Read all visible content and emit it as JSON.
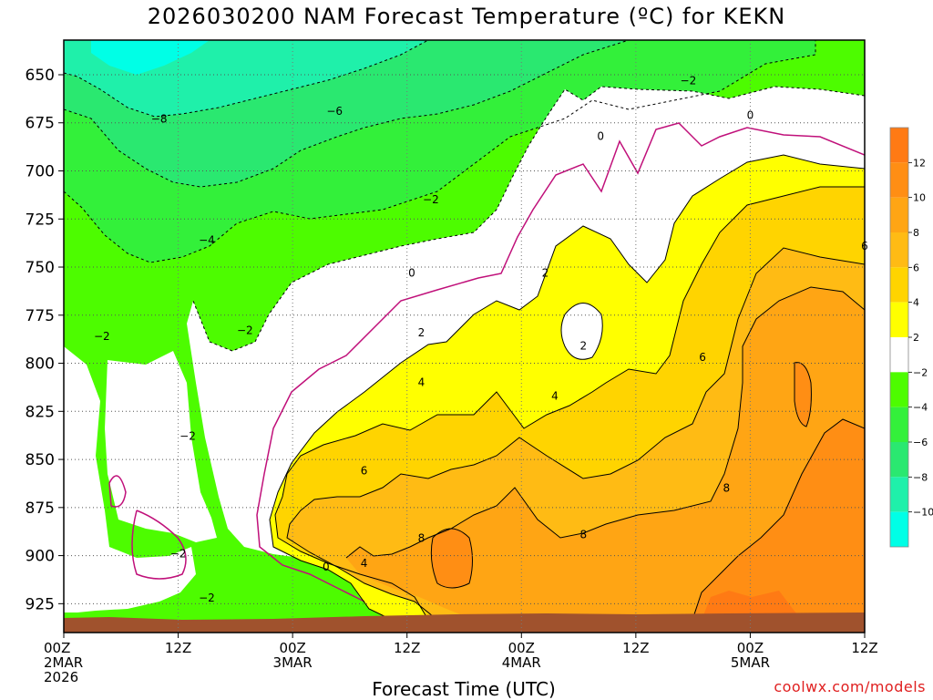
{
  "chart_data": {
    "type": "contour",
    "title": "2026030200 NAM Forecast Temperature (ºC) for KEKN",
    "xlabel": "Forecast Time (UTC)",
    "credit": "coolwx.com/models",
    "y_axis": {
      "ticks": [
        650,
        675,
        700,
        725,
        750,
        775,
        800,
        825,
        850,
        875,
        900,
        925
      ],
      "range": [
        632,
        940
      ],
      "inverted": true,
      "grid": true
    },
    "x_axis": {
      "ticks": [
        {
          "hour": 0,
          "lines": [
            "00Z",
            "2MAR",
            "2026"
          ]
        },
        {
          "hour": 12,
          "lines": [
            "12Z"
          ]
        },
        {
          "hour": 24,
          "lines": [
            "00Z",
            "3MAR"
          ]
        },
        {
          "hour": 36,
          "lines": [
            "12Z"
          ]
        },
        {
          "hour": 48,
          "lines": [
            "00Z",
            "4MAR"
          ]
        },
        {
          "hour": 60,
          "lines": [
            "12Z"
          ]
        },
        {
          "hour": 72,
          "lines": [
            "00Z",
            "5MAR"
          ]
        },
        {
          "hour": 84,
          "lines": [
            "12Z"
          ]
        }
      ],
      "range": [
        0,
        84
      ],
      "grid": true
    },
    "colorbar": {
      "labels": [
        12,
        10,
        8,
        6,
        4,
        2,
        -2,
        -4,
        -6,
        -8,
        -10
      ],
      "bins": [
        {
          "color": "#ff7a14"
        },
        {
          "color": "#ff8e14"
        },
        {
          "color": "#ffa514"
        },
        {
          "color": "#ffbb14"
        },
        {
          "color": "#ffd400"
        },
        {
          "color": "#ffff00"
        },
        {
          "color": "#ffffff"
        },
        {
          "color": "#4dfc00"
        },
        {
          "color": "#33f03a"
        },
        {
          "color": "#2ae870"
        },
        {
          "color": "#1ff0aa"
        },
        {
          "color": "#00ffe6"
        }
      ]
    },
    "contour_labels": [
      {
        "hour": 10.0,
        "p": 673,
        "text": "-8"
      },
      {
        "hour": 28.4,
        "p": 669,
        "text": "-6"
      },
      {
        "hour": 65.5,
        "p": 653,
        "text": "-2"
      },
      {
        "hour": 72.0,
        "p": 671,
        "text": "0"
      },
      {
        "hour": 56.3,
        "p": 682,
        "text": "0"
      },
      {
        "hour": 38.5,
        "p": 715,
        "text": "-2"
      },
      {
        "hour": 15.0,
        "p": 736,
        "text": "-4"
      },
      {
        "hour": 84.0,
        "p": 739,
        "text": "6"
      },
      {
        "hour": 36.5,
        "p": 753,
        "text": "0"
      },
      {
        "hour": 50.5,
        "p": 753,
        "text": "2"
      },
      {
        "hour": 4.0,
        "p": 786,
        "text": "-2"
      },
      {
        "hour": 19.0,
        "p": 783,
        "text": "-2"
      },
      {
        "hour": 37.5,
        "p": 784,
        "text": "2"
      },
      {
        "hour": 54.5,
        "p": 791,
        "text": "2"
      },
      {
        "hour": 67.0,
        "p": 797,
        "text": "6"
      },
      {
        "hour": 37.5,
        "p": 810,
        "text": "4"
      },
      {
        "hour": 51.5,
        "p": 817,
        "text": "4"
      },
      {
        "hour": 13.0,
        "p": 838,
        "text": "-2"
      },
      {
        "hour": 31.5,
        "p": 856,
        "text": "6"
      },
      {
        "hour": 69.5,
        "p": 865,
        "text": "8"
      },
      {
        "hour": 37.5,
        "p": 891,
        "text": "8"
      },
      {
        "hour": 54.5,
        "p": 889,
        "text": "8"
      },
      {
        "hour": 12.0,
        "p": 899,
        "text": "-2"
      },
      {
        "hour": 27.5,
        "p": 906,
        "text": "0"
      },
      {
        "hour": 31.5,
        "p": 904,
        "text": "4"
      },
      {
        "hour": 15.0,
        "p": 922,
        "text": "-2"
      }
    ]
  }
}
